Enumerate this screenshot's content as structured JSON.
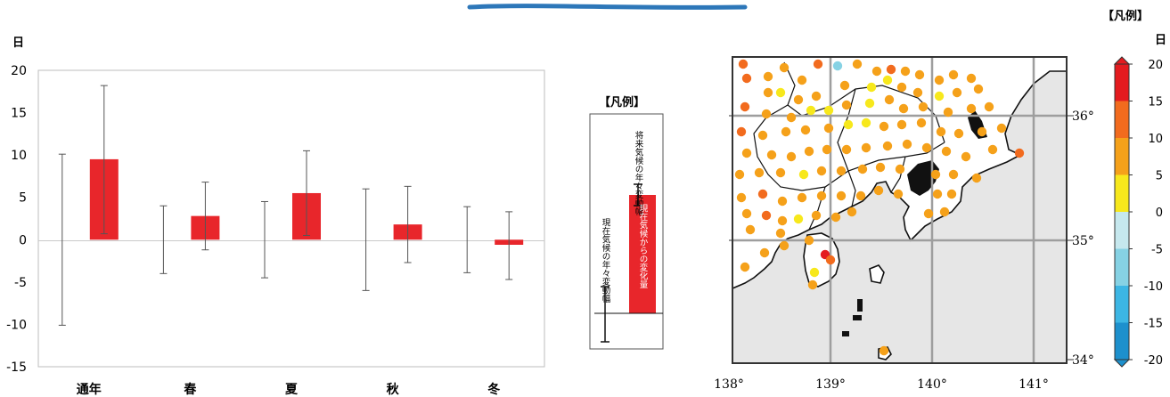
{
  "chart_data": [
    {
      "type": "bar",
      "ylabel": "日",
      "ylim": [
        -15,
        20
      ],
      "yticks": [
        20,
        15,
        10,
        5,
        0,
        -5,
        -10,
        -15
      ],
      "categories": [
        "通年",
        "春",
        "夏",
        "秋",
        "冬"
      ],
      "series": [
        {
          "values": [
            9.5,
            2.8,
            5.5,
            1.8,
            -0.6
          ]
        }
      ],
      "future_variability": [
        [
          0.7,
          18.2
        ],
        [
          -1.2,
          6.8
        ],
        [
          0.5,
          10.5
        ],
        [
          -2.7,
          6.3
        ],
        [
          -4.7,
          3.3
        ]
      ],
      "present_variability": [
        [
          -10.1,
          10.1
        ],
        [
          -4.0,
          4.0
        ],
        [
          -4.5,
          4.5
        ],
        [
          -6.0,
          6.0
        ],
        [
          -3.9,
          3.9
        ]
      ],
      "grid": false,
      "bar_color": "#e8262b"
    },
    {
      "type": "map",
      "xticks": [
        "138°",
        "139°",
        "140°",
        "141°"
      ],
      "yticks": [
        "36°",
        "35°",
        "34°"
      ],
      "grid": true,
      "land_color": "#ffffff",
      "sea_color": "#e6e6e6"
    }
  ],
  "legend_box": {
    "title": "【凡例】",
    "future_label": "将来気候の年々変動幅",
    "present_label": "現在気候の年々変動幅",
    "bar_label": "現在気候からの変化量"
  },
  "colorbar": {
    "title": "【凡例】",
    "unit": "日",
    "ticks": [
      "20",
      "15",
      "10",
      "5",
      "0",
      "-5",
      "-10",
      "-15",
      "-20"
    ],
    "colors": [
      "#e41b1f",
      "#f26b1e",
      "#f5a11a",
      "#f7e81c",
      "#c6e8ee",
      "#86d2e4",
      "#3cb6e4",
      "#1d90cd"
    ]
  }
}
